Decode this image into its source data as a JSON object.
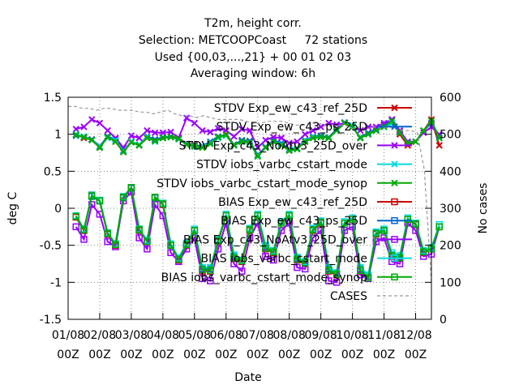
{
  "chart_data": {
    "type": "line",
    "title_lines": [
      "T2m, height corr.",
      "Selection: METCOOPCoast     72 stations",
      "Used {00,03,...,21} + 00 01 02 03",
      "Averaging window:  6h"
    ],
    "xlabel": "Date",
    "ylabel": "deg C",
    "y2label": "No cases",
    "ylim": [
      -1.5,
      1.5
    ],
    "y2lim": [
      0,
      600
    ],
    "yticks": [
      "1.5",
      "1",
      "0.5",
      "0",
      "-0.5",
      "-1",
      "-1.5"
    ],
    "y2ticks": [
      "600",
      "500",
      "400",
      "300",
      "200",
      "100",
      "0"
    ],
    "xticks": [
      {
        "top": "01/08",
        "bottom": "00Z"
      },
      {
        "top": "02/08",
        "bottom": "00Z"
      },
      {
        "top": "03/08",
        "bottom": "00Z"
      },
      {
        "top": "04/08",
        "bottom": "00Z"
      },
      {
        "top": "05/08",
        "bottom": "00Z"
      },
      {
        "top": "06/08",
        "bottom": "00Z"
      },
      {
        "top": "07/08",
        "bottom": "00Z"
      },
      {
        "top": "08/08",
        "bottom": "00Z"
      },
      {
        "top": "09/08",
        "bottom": "00Z"
      },
      {
        "top": "10/08",
        "bottom": "00Z"
      },
      {
        "top": "11/08",
        "bottom": "00Z"
      },
      {
        "top": "12/08",
        "bottom": "00Z"
      }
    ],
    "x_step_days": 0.25,
    "x_start_day": 0.25,
    "legend_position": "inside top-right",
    "grid": true,
    "series": [
      {
        "name": "STDV Exp_ew_c43_ref_25D",
        "color": "#cc0000",
        "marker": "x",
        "axis": "y",
        "values": [
          1.0,
          0.95,
          0.93,
          0.82,
          0.97,
          0.9,
          0.76,
          0.9,
          0.85,
          0.95,
          0.92,
          0.95,
          0.97,
          0.95,
          0.87,
          0.86,
          0.83,
          0.88,
          0.96,
          1.0,
          0.86,
          0.91,
          0.9,
          0.72,
          0.82,
          0.9,
          0.86,
          0.78,
          0.8,
          0.9,
          0.95,
          0.97,
          0.95,
          1.05,
          1.15,
          1.1,
          0.95,
          1.0,
          1.05,
          1.12,
          1.2,
          1.0,
          0.85,
          0.9,
          1.05,
          1.2,
          0.85
        ]
      },
      {
        "name": "STDV Exp_ew_c43_ps_25D",
        "color": "#0066cc",
        "marker": "x",
        "axis": "y",
        "values": [
          0.98,
          0.97,
          0.93,
          0.84,
          0.97,
          0.93,
          0.78,
          0.9,
          0.86,
          0.97,
          0.93,
          0.96,
          0.97,
          0.94,
          0.87,
          0.85,
          0.84,
          0.9,
          0.97,
          0.99,
          0.86,
          0.92,
          0.91,
          0.72,
          0.83,
          0.92,
          0.88,
          0.8,
          0.81,
          0.92,
          0.97,
          0.98,
          0.96,
          1.07,
          1.16,
          1.1,
          0.96,
          1.02,
          1.07,
          1.13,
          1.2,
          1.03,
          0.88,
          0.9,
          1.05,
          1.15,
          0.98
        ]
      },
      {
        "name": "STDV Exp_c43_NoAtv3_25D_over",
        "color": "#9900ff",
        "marker": "x",
        "axis": "y",
        "values": [
          1.07,
          1.1,
          1.2,
          1.15,
          1.05,
          0.95,
          0.82,
          0.98,
          0.95,
          1.05,
          1.02,
          1.02,
          1.03,
          0.95,
          1.22,
          1.15,
          1.05,
          1.03,
          1.08,
          1.05,
          0.97,
          1.07,
          1.05,
          0.82,
          0.92,
          0.96,
          0.95,
          0.88,
          0.9,
          1.0,
          1.05,
          1.1,
          1.15,
          1.13,
          1.15,
          1.1,
          1.05,
          1.1,
          1.1,
          1.15,
          1.2,
          1.05,
          0.9,
          0.9,
          1.02,
          1.1,
          1.0
        ]
      },
      {
        "name": "STDV iobs_varbc_cstart_mode",
        "color": "#00dddd",
        "marker": "x",
        "axis": "y",
        "values": [
          1.0,
          0.97,
          0.92,
          0.83,
          0.95,
          0.92,
          0.77,
          0.9,
          0.86,
          0.96,
          0.9,
          0.95,
          0.96,
          0.93,
          0.86,
          0.83,
          0.83,
          0.88,
          0.95,
          0.98,
          0.85,
          0.9,
          0.88,
          0.71,
          0.82,
          0.9,
          0.86,
          0.79,
          0.8,
          0.91,
          0.96,
          0.96,
          0.95,
          1.05,
          1.15,
          1.12,
          0.95,
          1.0,
          1.05,
          1.1,
          1.15,
          1.02,
          0.88,
          0.9,
          1.05,
          1.18,
          0.95
        ]
      },
      {
        "name": "STDV iobs_varbc_cstart_mode_synop",
        "color": "#00aa00",
        "marker": "x",
        "axis": "y",
        "values": [
          0.99,
          0.96,
          0.92,
          0.82,
          0.96,
          0.9,
          0.76,
          0.89,
          0.85,
          0.95,
          0.91,
          0.95,
          0.96,
          0.94,
          0.86,
          0.84,
          0.82,
          0.87,
          0.96,
          0.99,
          0.85,
          0.9,
          0.89,
          0.7,
          0.82,
          0.9,
          0.85,
          0.78,
          0.8,
          0.9,
          0.95,
          0.96,
          0.95,
          1.05,
          1.15,
          1.1,
          0.95,
          1.0,
          1.05,
          1.1,
          1.18,
          1.02,
          0.88,
          0.9,
          1.05,
          1.18,
          0.95
        ]
      },
      {
        "name": "BIAS Exp_ew_c43_ref_25D",
        "color": "#cc0000",
        "marker": "square",
        "axis": "y",
        "values": [
          -0.12,
          -0.3,
          0.18,
          0.1,
          -0.35,
          -0.5,
          0.15,
          0.28,
          -0.3,
          -0.45,
          0.15,
          0.05,
          -0.5,
          -0.7,
          -0.5,
          -0.3,
          -0.85,
          -0.85,
          -0.45,
          -0.1,
          -0.68,
          -0.72,
          -0.3,
          -0.1,
          -0.55,
          -0.6,
          -0.2,
          -0.1,
          -0.7,
          -0.75,
          -0.3,
          -0.2,
          -0.85,
          -0.9,
          -0.2,
          -0.15,
          -0.85,
          -0.95,
          -0.35,
          -0.3,
          -0.65,
          -0.68,
          -0.15,
          -0.22,
          -0.6,
          -0.55,
          -0.25
        ]
      },
      {
        "name": "BIAS Exp_ew_c43_ps_25D",
        "color": "#0066cc",
        "marker": "square",
        "axis": "y",
        "values": [
          -0.1,
          -0.28,
          0.16,
          0.1,
          -0.33,
          -0.48,
          0.14,
          0.27,
          -0.28,
          -0.44,
          0.14,
          0.06,
          -0.5,
          -0.68,
          -0.48,
          -0.3,
          -0.82,
          -0.82,
          -0.43,
          -0.1,
          -0.65,
          -0.7,
          -0.28,
          -0.1,
          -0.52,
          -0.58,
          -0.2,
          -0.1,
          -0.68,
          -0.73,
          -0.28,
          -0.18,
          -0.82,
          -0.88,
          -0.2,
          -0.15,
          -0.82,
          -0.92,
          -0.33,
          -0.3,
          -0.63,
          -0.66,
          -0.15,
          -0.2,
          -0.58,
          -0.55,
          -0.25
        ]
      },
      {
        "name": "BIAS Exp_c43_NoAtv3_25D_over",
        "color": "#9900ff",
        "marker": "square",
        "axis": "y",
        "values": [
          -0.25,
          -0.42,
          0.05,
          -0.08,
          -0.45,
          -0.52,
          0.1,
          0.22,
          -0.4,
          -0.55,
          0.05,
          -0.1,
          -0.6,
          -0.72,
          -0.55,
          -0.4,
          -0.95,
          -0.98,
          -0.55,
          -0.2,
          -0.75,
          -0.85,
          -0.4,
          -0.2,
          -0.65,
          -0.7,
          -0.3,
          -0.2,
          -0.8,
          -0.82,
          -0.4,
          -0.3,
          -0.98,
          -1.0,
          -0.3,
          -0.25,
          -0.9,
          -0.95,
          -0.45,
          -0.4,
          -0.72,
          -0.75,
          -0.2,
          -0.3,
          -0.65,
          -0.62,
          -0.25
        ]
      },
      {
        "name": "BIAS iobs_varbc_cstart_mode",
        "color": "#00dddd",
        "marker": "square",
        "axis": "y",
        "values": [
          -0.1,
          -0.28,
          0.18,
          0.11,
          -0.33,
          -0.48,
          0.16,
          0.28,
          -0.28,
          -0.43,
          0.15,
          0.07,
          -0.48,
          -0.67,
          -0.47,
          -0.28,
          -0.8,
          -0.8,
          -0.42,
          -0.08,
          -0.63,
          -0.7,
          -0.27,
          -0.08,
          -0.5,
          -0.57,
          -0.18,
          -0.08,
          -0.66,
          -0.72,
          -0.27,
          -0.17,
          -0.8,
          -0.87,
          -0.18,
          -0.13,
          -0.8,
          -0.9,
          -0.32,
          -0.28,
          -0.6,
          -0.64,
          -0.13,
          -0.2,
          -0.57,
          -0.53,
          -0.22
        ]
      },
      {
        "name": "BIAS iobs_varbc_cstart_mode_synop",
        "color": "#00aa00",
        "marker": "square",
        "axis": "y",
        "values": [
          -0.11,
          -0.29,
          0.17,
          0.1,
          -0.34,
          -0.49,
          0.15,
          0.28,
          -0.29,
          -0.45,
          0.15,
          0.06,
          -0.5,
          -0.69,
          -0.49,
          -0.3,
          -0.83,
          -0.84,
          -0.44,
          -0.1,
          -0.67,
          -0.71,
          -0.29,
          -0.1,
          -0.54,
          -0.59,
          -0.2,
          -0.1,
          -0.69,
          -0.74,
          -0.29,
          -0.19,
          -0.84,
          -0.89,
          -0.2,
          -0.15,
          -0.84,
          -0.94,
          -0.34,
          -0.3,
          -0.64,
          -0.67,
          -0.15,
          -0.21,
          -0.59,
          -0.55,
          -0.25
        ]
      },
      {
        "name": "CASES",
        "color": "#999999",
        "marker": "none",
        "dashed": true,
        "axis": "y2",
        "values": [
          575,
          575,
          570,
          570,
          565,
          570,
          570,
          565,
          565,
          565,
          560,
          560,
          555,
          560,
          565,
          555,
          550,
          550,
          545,
          550,
          545,
          540,
          540,
          540,
          540,
          535,
          530,
          530,
          535,
          535,
          535,
          530,
          525,
          525,
          530,
          530,
          525,
          520,
          525,
          525,
          515,
          520,
          515,
          520,
          515,
          520,
          515,
          510,
          510,
          505,
          405,
          100
        ]
      }
    ]
  }
}
